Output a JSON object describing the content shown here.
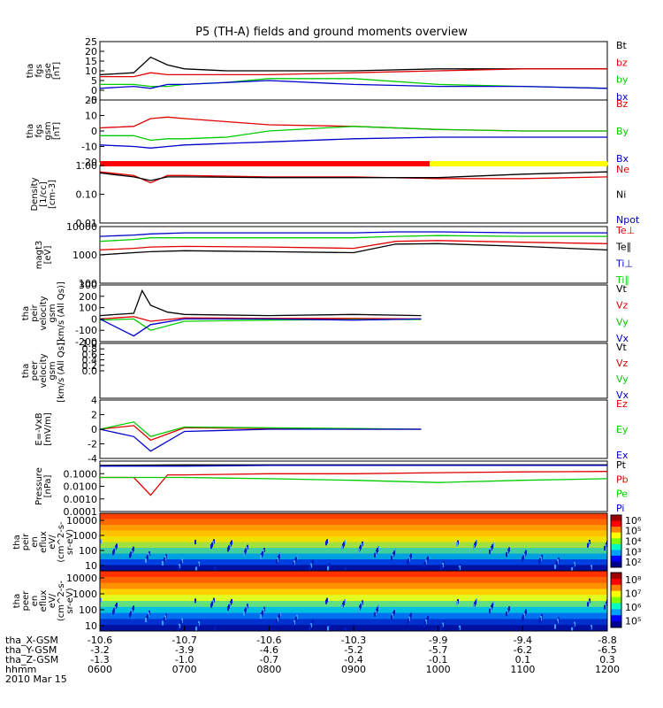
{
  "title": "P5 (TH-A) fields and ground moments overview",
  "footer": {
    "labels": [
      "tha_X-GSM",
      "tha_Y-GSM",
      "tha_Z-GSM",
      "hhmm",
      "2010 Mar 15"
    ],
    "rows": [
      [
        "-10.6",
        "-10.7",
        "-10.6",
        "-10.3",
        "-9.9",
        "-9.4",
        "-8.8"
      ],
      [
        "-3.2",
        "-3.9",
        "-4.6",
        "-5.2",
        "-5.7",
        "-6.2",
        "-6.5"
      ],
      [
        "-1.3",
        "-1.0",
        "-0.7",
        "-0.4",
        "-0.1",
        "0.1",
        "0.3"
      ],
      [
        "0600",
        "0700",
        "0800",
        "0900",
        "1000",
        "1100",
        "1200"
      ]
    ]
  },
  "chart_data": {
    "type": "line",
    "x_range": [
      "06:00",
      "12:00"
    ],
    "x_ticks": [
      "0600",
      "0700",
      "0800",
      "0900",
      "1000",
      "1100",
      "1200"
    ],
    "panels": [
      {
        "id": "fgs-gse",
        "ylabel": [
          "tha",
          "fgs",
          "gse",
          "[nT]"
        ],
        "ylim": [
          -5,
          25
        ],
        "yscale": "linear",
        "yticks": [
          "-5",
          "0",
          "5",
          "10",
          "15",
          "20",
          "25"
        ],
        "series": [
          {
            "name": "Bt",
            "color": "#000000",
            "x": [
              0,
              0.4,
              0.6,
              0.8,
              1.0,
              1.5,
              2.0,
              3.0,
              4.0,
              5.0,
              6.0
            ],
            "y": [
              8,
              9,
              17,
              13,
              11,
              10,
              10,
              10,
              11,
              11,
              11
            ]
          },
          {
            "name": "bz",
            "color": "#e00000",
            "x": [
              0,
              0.4,
              0.6,
              0.8,
              1.0,
              1.5,
              2.0,
              3.0,
              4.0,
              5.0,
              6.0
            ],
            "y": [
              7,
              7,
              9,
              8,
              8,
              8,
              8,
              9,
              10,
              11,
              11
            ]
          },
          {
            "name": "by",
            "color": "#00cc00",
            "x": [
              0,
              0.4,
              0.6,
              0.8,
              1.0,
              1.5,
              2.0,
              3.0,
              4.0,
              5.0,
              6.0
            ],
            "y": [
              3,
              3,
              2,
              2,
              3,
              4,
              6,
              6,
              3,
              2,
              1
            ]
          },
          {
            "name": "bx",
            "color": "#0000cc",
            "x": [
              0,
              0.4,
              0.6,
              0.8,
              1.0,
              1.5,
              2.0,
              3.0,
              4.0,
              5.0,
              6.0
            ],
            "y": [
              1,
              2,
              1,
              3,
              3,
              4,
              5,
              3,
              2,
              2,
              1
            ]
          }
        ]
      },
      {
        "id": "fgs-gsm",
        "ylabel": [
          "tha",
          "fgs",
          "gsm",
          "[nT]"
        ],
        "ylim": [
          -20,
          20
        ],
        "yscale": "linear",
        "yticks": [
          "-20",
          "-10",
          "0",
          "10",
          "20"
        ],
        "series": [
          {
            "name": "Bz",
            "color": "#e00000",
            "x": [
              0,
              0.4,
              0.6,
              0.8,
              1.0,
              1.5,
              2.0,
              3.0,
              4.0,
              5.0,
              6.0
            ],
            "y": [
              2,
              3,
              8,
              9,
              8,
              6,
              4,
              3,
              1,
              0,
              0
            ]
          },
          {
            "name": "By",
            "color": "#00cc00",
            "x": [
              0,
              0.4,
              0.6,
              0.8,
              1.0,
              1.5,
              2.0,
              3.0,
              4.0,
              5.0,
              6.0
            ],
            "y": [
              -3,
              -3,
              -6,
              -5,
              -5,
              -4,
              0,
              3,
              1,
              0,
              0
            ]
          },
          {
            "name": "Bx",
            "color": "#0000cc",
            "x": [
              0,
              0.4,
              0.6,
              0.8,
              1.0,
              1.5,
              2.0,
              3.0,
              4.0,
              5.0,
              6.0
            ],
            "y": [
              -9,
              -10,
              -11,
              -10,
              -9,
              -8,
              -7,
              -5,
              -4,
              -4,
              -4
            ]
          }
        ]
      },
      {
        "id": "density",
        "ylabel": [
          "Density",
          "[1/cc]",
          "[cm-3]"
        ],
        "ylim": [
          0.01,
          1.0
        ],
        "yscale": "log",
        "yticks": [
          "1.00",
          "0.10",
          "0.01"
        ],
        "series": [
          {
            "name": "Ne",
            "color": "#e00000",
            "x": [
              0,
              0.4,
              0.6,
              0.8,
              1.0,
              2.0,
              3.0,
              4.0,
              5.0,
              6.0
            ],
            "y": [
              0.6,
              0.45,
              0.25,
              0.45,
              0.45,
              0.4,
              0.4,
              0.35,
              0.35,
              0.4
            ]
          },
          {
            "name": "Ni",
            "color": "#000000",
            "x": [
              0,
              0.4,
              0.6,
              0.8,
              1.0,
              2.0,
              3.0,
              4.0,
              5.0,
              6.0
            ],
            "y": [
              0.55,
              0.4,
              0.3,
              0.4,
              0.4,
              0.38,
              0.38,
              0.38,
              0.5,
              0.6
            ]
          }
        ],
        "legend_extra": [
          {
            "name": "Npot",
            "color": "#0000cc"
          }
        ],
        "mode_bar": [
          {
            "from": 0,
            "to": 3.9,
            "color": "#ff0000"
          },
          {
            "from": 3.9,
            "to": 6.0,
            "color": "#ffff00"
          }
        ]
      },
      {
        "id": "temperature",
        "ylabel": [
          "magt3",
          "[eV]"
        ],
        "ylim": [
          100,
          10000
        ],
        "yscale": "log",
        "yticks": [
          "10000",
          "1000",
          "100"
        ],
        "series": [
          {
            "name": "Te⊥",
            "color": "#e00000",
            "x": [
              0,
              0.4,
              0.6,
              1.0,
              2.0,
              3.0,
              3.5,
              4.0,
              5.0,
              6.0
            ],
            "y": [
              1500,
              1700,
              1900,
              2000,
              1900,
              1700,
              3000,
              3200,
              2800,
              2500
            ]
          },
          {
            "name": "Te∥",
            "color": "#000000",
            "x": [
              0,
              0.4,
              0.6,
              1.0,
              2.0,
              3.0,
              3.5,
              4.0,
              5.0,
              6.0
            ],
            "y": [
              1000,
              1200,
              1300,
              1400,
              1300,
              1200,
              2400,
              2500,
              2000,
              1500
            ]
          },
          {
            "name": "Ti⊥",
            "color": "#0000cc",
            "x": [
              0,
              0.4,
              0.6,
              1.0,
              2.0,
              3.0,
              3.5,
              4.0,
              5.0,
              6.0
            ],
            "y": [
              4500,
              5000,
              5500,
              6000,
              6000,
              6000,
              6500,
              6500,
              6000,
              6000
            ]
          },
          {
            "name": "Ti∥",
            "color": "#00cc00",
            "x": [
              0,
              0.4,
              0.6,
              1.0,
              2.0,
              3.0,
              3.5,
              4.0,
              5.0,
              6.0
            ],
            "y": [
              3000,
              3500,
              4000,
              4000,
              4000,
              4000,
              4500,
              4800,
              4500,
              4500
            ]
          }
        ]
      },
      {
        "id": "peir-velocity",
        "ylabel": [
          "tha",
          "peir",
          "velocity",
          "gsm",
          "[km/s (All Qs)]"
        ],
        "ylim": [
          -200,
          300
        ],
        "yscale": "linear",
        "yticks": [
          "300",
          "200",
          "100",
          "0",
          "-100",
          "-200"
        ],
        "series": [
          {
            "name": "Vt",
            "color": "#000000",
            "x": [
              0,
              0.4,
              0.5,
              0.6,
              0.8,
              1.0,
              2.0,
              3.0,
              3.8
            ],
            "y": [
              30,
              50,
              250,
              120,
              60,
              40,
              30,
              40,
              30
            ]
          },
          {
            "name": "Vz",
            "color": "#e00000",
            "x": [
              0,
              0.4,
              0.6,
              1.0,
              2.0,
              3.0,
              3.8
            ],
            "y": [
              0,
              20,
              -20,
              10,
              5,
              5,
              0
            ]
          },
          {
            "name": "Vy",
            "color": "#00cc00",
            "x": [
              0,
              0.4,
              0.6,
              1.0,
              2.0,
              3.0,
              3.8
            ],
            "y": [
              -10,
              0,
              -100,
              -20,
              -10,
              -5,
              -5
            ]
          },
          {
            "name": "Vx",
            "color": "#0000cc",
            "x": [
              0,
              0.4,
              0.6,
              1.0,
              2.0,
              3.0,
              3.8
            ],
            "y": [
              0,
              -150,
              -50,
              0,
              0,
              -10,
              0
            ]
          }
        ]
      },
      {
        "id": "peer-velocity",
        "ylabel": [
          "tha",
          "peer",
          "velocity",
          "gsm",
          "[km/s (All Qs)]"
        ],
        "ylim": [
          -1.0,
          1.0
        ],
        "yscale": "linear",
        "yticks": [
          "1.0",
          "0.8",
          "0.6",
          "0.4",
          "0.2",
          "0.0"
        ],
        "series": [
          {
            "name": "Vt",
            "color": "#000000",
            "x": [],
            "y": []
          },
          {
            "name": "Vz",
            "color": "#e00000",
            "x": [],
            "y": []
          },
          {
            "name": "Vy",
            "color": "#00cc00",
            "x": [],
            "y": []
          },
          {
            "name": "Vx",
            "color": "#0000cc",
            "x": [],
            "y": []
          }
        ]
      },
      {
        "id": "efield",
        "ylabel": [
          "E=-VxB",
          "[mV/m]"
        ],
        "ylim": [
          -4,
          4
        ],
        "yscale": "linear",
        "yticks": [
          "4",
          "2",
          "0",
          "-2",
          "-4"
        ],
        "series": [
          {
            "name": "Ez",
            "color": "#e00000",
            "x": [
              0,
              0.4,
              0.6,
              1.0,
              2.0,
              3.0,
              3.8
            ],
            "y": [
              0,
              0.5,
              -1.5,
              0.2,
              0.1,
              0,
              0
            ]
          },
          {
            "name": "Ey",
            "color": "#00cc00",
            "x": [
              0,
              0.4,
              0.6,
              1.0,
              2.0,
              3.0,
              3.8
            ],
            "y": [
              0,
              1.0,
              -1.0,
              0.3,
              0.2,
              0.1,
              0
            ]
          },
          {
            "name": "Ex",
            "color": "#0000cc",
            "x": [
              0,
              0.4,
              0.6,
              1.0,
              2.0,
              3.0,
              3.8
            ],
            "y": [
              0,
              -1.0,
              -3.0,
              -0.3,
              0,
              0,
              0
            ]
          }
        ]
      },
      {
        "id": "pressure",
        "ylabel": [
          "Pressure",
          "[nPa]"
        ],
        "ylim": [
          0.0001,
          1.0
        ],
        "yscale": "log",
        "yticks": [
          "0.1000",
          "0.0100",
          "0.0010",
          "0.0001"
        ],
        "series": [
          {
            "name": "Pt",
            "color": "#000000",
            "x": [
              0,
              1.0,
              2.0,
              3.0,
              4.0,
              5.0,
              6.0
            ],
            "y": [
              0.45,
              0.5,
              0.5,
              0.5,
              0.5,
              0.5,
              0.5
            ]
          },
          {
            "name": "Pb",
            "color": "#e00000",
            "x": [
              0,
              0.4,
              0.6,
              0.8,
              1.0,
              2.0,
              3.0,
              4.0,
              5.0,
              6.0
            ],
            "y": [
              0.05,
              0.05,
              0.002,
              0.08,
              0.08,
              0.1,
              0.1,
              0.12,
              0.14,
              0.15
            ]
          },
          {
            "name": "Pe",
            "color": "#00cc00",
            "x": [
              0,
              1.0,
              2.0,
              3.0,
              4.0,
              5.0,
              6.0
            ],
            "y": [
              0.05,
              0.05,
              0.04,
              0.03,
              0.02,
              0.03,
              0.04
            ]
          },
          {
            "name": "Pi",
            "color": "#0000cc",
            "x": [
              0,
              1.0,
              2.0,
              3.0,
              4.0,
              5.0,
              6.0
            ],
            "y": [
              0.4,
              0.4,
              0.45,
              0.45,
              0.45,
              0.45,
              0.45
            ]
          }
        ]
      },
      {
        "id": "peir-spectrogram",
        "type": "heatmap",
        "ylabel": [
          "tha",
          "peir",
          "en",
          "eflux",
          "eV/",
          "(cm^2-s-",
          "sr-eV)"
        ],
        "yscale": "log",
        "ylim": [
          10,
          20000
        ],
        "yticks": [
          "10000",
          "1000",
          "100",
          "10"
        ],
        "colorbar": {
          "ticks": [
            "10⁶",
            "10⁵",
            "10⁴",
            "10³",
            "10²"
          ]
        }
      },
      {
        "id": "peer-spectrogram",
        "type": "heatmap",
        "ylabel": [
          "tha",
          "peer",
          "en",
          "eflux",
          "eV/",
          "(cm^2-s-",
          "sr-eV)"
        ],
        "yscale": "log",
        "ylim": [
          10,
          20000
        ],
        "yticks": [
          "10000",
          "1000",
          "100",
          "10"
        ],
        "colorbar": {
          "ticks": [
            "10⁸",
            "10⁷",
            "10⁶",
            "10⁵"
          ]
        }
      }
    ]
  }
}
